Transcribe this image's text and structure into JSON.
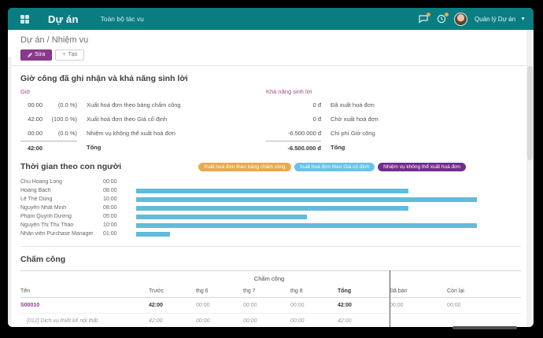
{
  "header": {
    "app_name": "Dự án",
    "menu_item": "Toàn bộ tác vụ",
    "user_name": "Quản lý Dự án"
  },
  "breadcrumb": "Dự án / Nhiệm vụ",
  "actions": {
    "edit_label": "Sửa",
    "create_label": "Tạo"
  },
  "colors": {
    "topbar": "#0a7d82",
    "accent_purple": "#8a3a8d",
    "section_header_magenta": "#a34a8b",
    "bar_blue": "#61bcd9"
  },
  "profitability": {
    "title": "Giờ công đã ghi nhận và khả năng sinh lời",
    "hours": {
      "header": "Giờ",
      "rows": [
        {
          "value": "00:00",
          "pct": "(0.0 %)",
          "label": "Xuất hoá đơn theo bảng chấm công"
        },
        {
          "value": "42:00",
          "pct": "(100.0 %)",
          "label": "Xuất hoá đơn theo Giá cố định"
        },
        {
          "value": "00:00",
          "pct": "(0.0 %)",
          "label": "Nhiệm vụ không thể xuất hoá đơn"
        }
      ],
      "total": {
        "value": "42:00",
        "label": "Tổng"
      }
    },
    "profit": {
      "header": "Khả năng sinh lời",
      "rows": [
        {
          "value": "0 đ",
          "label": "Đã xuất hoá đơn"
        },
        {
          "value": "0 đ",
          "label": "Chờ xuất hoá đơn"
        },
        {
          "value": "-6.500.000 đ",
          "label": "Chi phí Giờ công"
        }
      ],
      "total": {
        "value": "-6.500.000 đ",
        "label": "Tổng"
      }
    }
  },
  "time_by_people": {
    "title": "Thời gian theo con người",
    "legend": [
      {
        "label": "Xuất hoá đơn theo bảng chấm công",
        "color": "#e9a94f"
      },
      {
        "label": "Xuất hoá đơn theo Giá cố định",
        "color": "#67c3e9"
      },
      {
        "label": "Nhiệm vụ không thể xuất hoá đơn",
        "color": "#732c8f"
      }
    ],
    "chart_data": {
      "type": "bar",
      "orientation": "horizontal",
      "title": "Thời gian theo con người",
      "categories": [
        "Chu Hoang Long",
        "Hoàng Bách",
        "Lê Thế Dũng",
        "Nguyễn Nhất Minh",
        "Phạm Quỳnh Dương",
        "Nguyễn Thị Thu Thảo",
        "Nhân viên Purchase Manager"
      ],
      "values": [
        0,
        8,
        10,
        8,
        5,
        10,
        1
      ],
      "value_labels": [
        "00:00",
        "08:00",
        "10:00",
        "08:00",
        "05:00",
        "10:00",
        "01:00"
      ],
      "xlim": [
        0,
        10
      ],
      "series_color": "#61bcd9",
      "legend_position": "top-right",
      "grid": false
    }
  },
  "timesheets": {
    "title": "Chấm công",
    "table": {
      "group_header": "Chấm công",
      "columns": [
        "Tên",
        "Trước",
        "thg 6",
        "thg 7",
        "thg 8",
        "Tổng",
        "Đã bán",
        "Còn lại"
      ],
      "rows": [
        {
          "name": "S00010",
          "cells": [
            "42:00",
            "00:00",
            "00:00",
            "00:00",
            "42:00",
            "00:00",
            "00:00"
          ]
        },
        {
          "name": "[012] Dịch vụ thiết kế nội thất",
          "cells": [
            "42:00",
            "00:00",
            "00:00",
            "00:00",
            "42:00",
            "",
            ""
          ]
        }
      ]
    }
  }
}
